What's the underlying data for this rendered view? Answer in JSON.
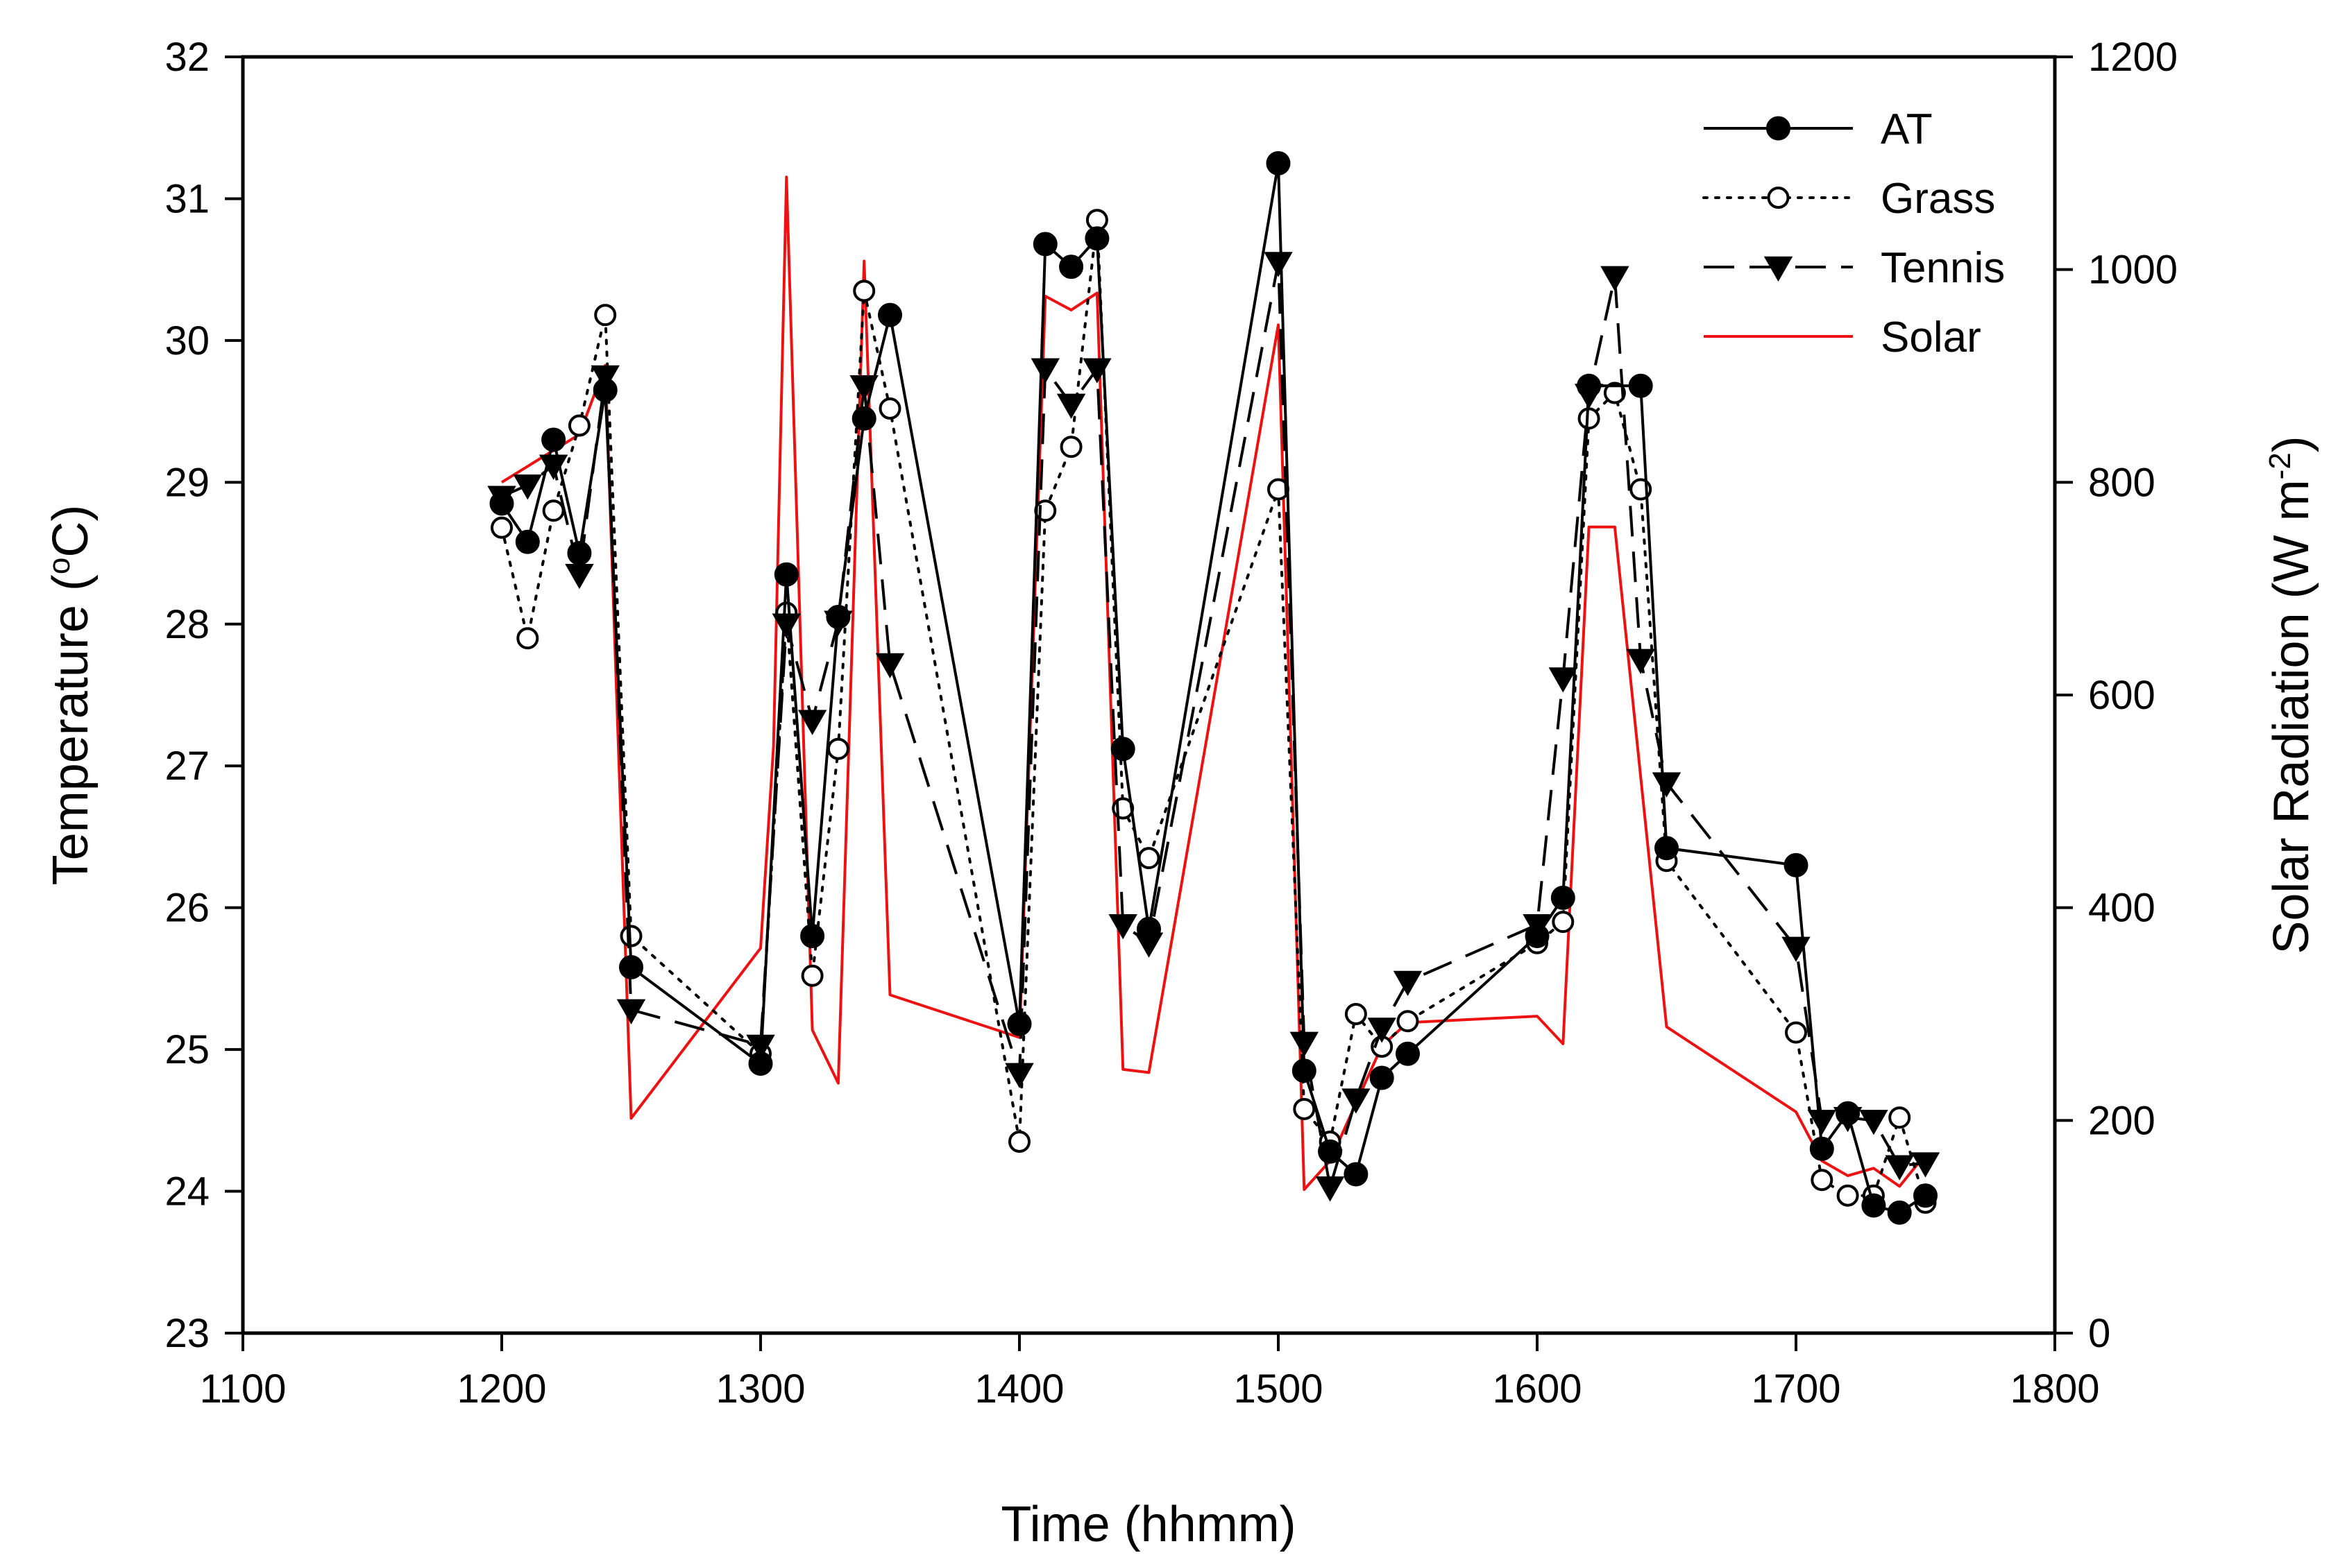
{
  "chart_data": {
    "type": "line",
    "title": "",
    "xlabel": "Time (hhmm)",
    "ylabel": {
      "main": "Temperature (",
      "sup": "o",
      "tail": "C)"
    },
    "y2label": {
      "main": "Solar Radiation (W m",
      "sup": "-2",
      "tail": ")"
    },
    "xlim": [
      1100,
      1800
    ],
    "ylim": [
      23,
      32
    ],
    "y2lim": [
      0,
      1200
    ],
    "x_ticks": [
      1100,
      1200,
      1300,
      1400,
      1500,
      1600,
      1700,
      1800
    ],
    "y_ticks": [
      23,
      24,
      25,
      26,
      27,
      28,
      29,
      30,
      31,
      32
    ],
    "y2_ticks": [
      0,
      200,
      400,
      600,
      800,
      1000,
      1200
    ],
    "legend_position": "top-right",
    "series": [
      {
        "name": "AT",
        "axis": "left",
        "color": "#000000",
        "line": "solid",
        "marker": "filled-circle",
        "points": [
          [
            1200,
            28.85
          ],
          [
            1210,
            28.58
          ],
          [
            1220,
            29.3
          ],
          [
            1230,
            28.5
          ],
          [
            1240,
            29.65
          ],
          [
            1250,
            25.58
          ],
          [
            1300,
            24.9
          ],
          [
            1310,
            28.35
          ],
          [
            1320,
            25.8
          ],
          [
            1330,
            28.05
          ],
          [
            1340,
            29.45
          ],
          [
            1350,
            30.18
          ],
          [
            1400,
            25.18
          ],
          [
            1410,
            30.68
          ],
          [
            1420,
            30.52
          ],
          [
            1430,
            30.72
          ],
          [
            1440,
            27.12
          ],
          [
            1450,
            25.85
          ],
          [
            1500,
            31.25
          ],
          [
            1510,
            24.85
          ],
          [
            1520,
            24.28
          ],
          [
            1530,
            24.12
          ],
          [
            1540,
            24.8
          ],
          [
            1550,
            24.97
          ],
          [
            1600,
            25.8
          ],
          [
            1610,
            26.07
          ],
          [
            1620,
            29.68
          ],
          [
            1640,
            29.68
          ],
          [
            1650,
            26.42
          ],
          [
            1700,
            26.3
          ],
          [
            1710,
            24.3
          ],
          [
            1720,
            24.55
          ],
          [
            1730,
            23.9
          ],
          [
            1740,
            23.85
          ],
          [
            1750,
            23.97
          ]
        ]
      },
      {
        "name": "Grass",
        "axis": "left",
        "color": "#000000",
        "line": "dotted",
        "marker": "open-circle",
        "points": [
          [
            1200,
            28.68
          ],
          [
            1210,
            27.9
          ],
          [
            1220,
            28.8
          ],
          [
            1230,
            29.4
          ],
          [
            1240,
            30.18
          ],
          [
            1250,
            25.8
          ],
          [
            1300,
            24.97
          ],
          [
            1310,
            28.08
          ],
          [
            1320,
            25.52
          ],
          [
            1330,
            27.12
          ],
          [
            1340,
            30.35
          ],
          [
            1350,
            29.52
          ],
          [
            1400,
            24.35
          ],
          [
            1410,
            28.8
          ],
          [
            1420,
            29.25
          ],
          [
            1430,
            30.85
          ],
          [
            1440,
            26.7
          ],
          [
            1450,
            26.35
          ],
          [
            1500,
            28.95
          ],
          [
            1510,
            24.58
          ],
          [
            1520,
            24.35
          ],
          [
            1530,
            25.25
          ],
          [
            1540,
            25.02
          ],
          [
            1550,
            25.2
          ],
          [
            1600,
            25.75
          ],
          [
            1610,
            25.9
          ],
          [
            1620,
            29.45
          ],
          [
            1630,
            29.63
          ],
          [
            1640,
            28.95
          ],
          [
            1650,
            26.33
          ],
          [
            1700,
            25.12
          ],
          [
            1710,
            24.08
          ],
          [
            1720,
            23.97
          ],
          [
            1730,
            23.97
          ],
          [
            1740,
            24.52
          ],
          [
            1750,
            23.92
          ]
        ]
      },
      {
        "name": "Tennis",
        "axis": "left",
        "color": "#000000",
        "line": "dashed",
        "marker": "filled-triangle-down",
        "points": [
          [
            1200,
            28.9
          ],
          [
            1210,
            28.98
          ],
          [
            1220,
            29.12
          ],
          [
            1230,
            28.35
          ],
          [
            1240,
            29.75
          ],
          [
            1250,
            25.28
          ],
          [
            1300,
            25.03
          ],
          [
            1310,
            28.0
          ],
          [
            1320,
            27.32
          ],
          [
            1330,
            28.02
          ],
          [
            1340,
            29.68
          ],
          [
            1350,
            27.72
          ],
          [
            1400,
            24.83
          ],
          [
            1410,
            29.8
          ],
          [
            1420,
            29.55
          ],
          [
            1430,
            29.8
          ],
          [
            1440,
            25.88
          ],
          [
            1450,
            25.75
          ],
          [
            1500,
            30.55
          ],
          [
            1510,
            25.05
          ],
          [
            1520,
            24.03
          ],
          [
            1530,
            24.65
          ],
          [
            1540,
            25.15
          ],
          [
            1550,
            25.48
          ],
          [
            1600,
            25.88
          ],
          [
            1610,
            27.62
          ],
          [
            1620,
            29.62
          ],
          [
            1630,
            30.45
          ],
          [
            1640,
            27.75
          ],
          [
            1650,
            26.88
          ],
          [
            1700,
            25.72
          ],
          [
            1710,
            24.5
          ],
          [
            1720,
            24.52
          ],
          [
            1730,
            24.5
          ],
          [
            1740,
            24.18
          ],
          [
            1750,
            24.2
          ]
        ]
      },
      {
        "name": "Solar",
        "axis": "right",
        "color": "#ee1111",
        "line": "solid",
        "marker": "none",
        "points": [
          [
            1200,
            800
          ],
          [
            1230,
            845
          ],
          [
            1240,
            910
          ],
          [
            1250,
            202
          ],
          [
            1300,
            362
          ],
          [
            1305,
            552
          ],
          [
            1310,
            1087
          ],
          [
            1320,
            285
          ],
          [
            1330,
            235
          ],
          [
            1340,
            1008
          ],
          [
            1350,
            318
          ],
          [
            1400,
            278
          ],
          [
            1410,
            975
          ],
          [
            1420,
            962
          ],
          [
            1430,
            978
          ],
          [
            1440,
            248
          ],
          [
            1450,
            245
          ],
          [
            1500,
            948
          ],
          [
            1510,
            135
          ],
          [
            1520,
            162
          ],
          [
            1540,
            270
          ],
          [
            1550,
            292
          ],
          [
            1600,
            298
          ],
          [
            1610,
            272
          ],
          [
            1620,
            758
          ],
          [
            1630,
            758
          ],
          [
            1650,
            288
          ],
          [
            1700,
            208
          ],
          [
            1710,
            162
          ],
          [
            1720,
            148
          ],
          [
            1730,
            155
          ],
          [
            1740,
            138
          ],
          [
            1750,
            168
          ]
        ]
      }
    ]
  }
}
